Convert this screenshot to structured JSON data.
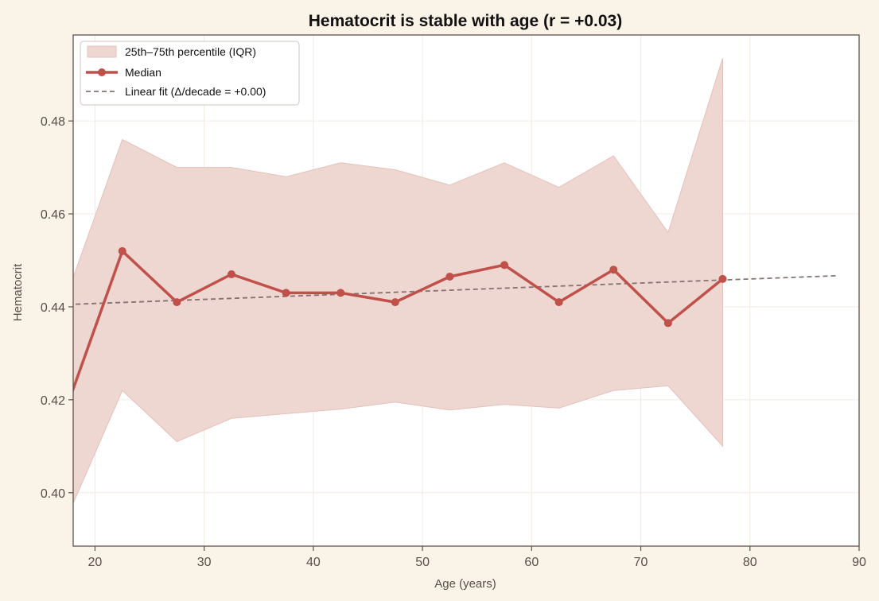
{
  "chart_data": {
    "type": "line",
    "title": "Hematocrit is stable with age (r = +0.03)",
    "xlabel": "Age (years)",
    "ylabel": "Hematocrit",
    "xlim": [
      18,
      90
    ],
    "ylim": [
      0.3885,
      0.4985
    ],
    "x_ticks": [
      20,
      30,
      40,
      50,
      60,
      70,
      80,
      90
    ],
    "y_ticks": [
      0.4,
      0.42,
      0.44,
      0.46,
      0.48
    ],
    "x_tick_labels": [
      "20",
      "30",
      "40",
      "50",
      "60",
      "70",
      "80",
      "90"
    ],
    "y_tick_labels": [
      "0.40",
      "0.42",
      "0.44",
      "0.46",
      "0.48"
    ],
    "grid": true,
    "legend_position": "top-left",
    "legend": {
      "band": "25th–75th percentile (IQR)",
      "median": "Median",
      "fit": "Linear fit (Δ/decade = +0.00)"
    },
    "x": [
      17.5,
      22.5,
      27.5,
      32.5,
      37.5,
      42.5,
      47.5,
      52.5,
      57.5,
      62.5,
      67.5,
      72.5,
      77.5
    ],
    "series": [
      {
        "name": "Median",
        "values": [
          0.419,
          0.452,
          0.441,
          0.447,
          0.443,
          0.443,
          0.441,
          0.4465,
          0.449,
          0.441,
          0.448,
          0.4365,
          0.446
        ]
      },
      {
        "name": "25th–75th percentile (IQR)",
        "lower": [
          0.395,
          0.422,
          0.411,
          0.416,
          0.417,
          0.418,
          0.4195,
          0.4178,
          0.419,
          0.4182,
          0.422,
          0.423,
          0.41
        ],
        "upper": [
          0.443,
          0.476,
          0.47,
          0.47,
          0.468,
          0.471,
          0.4695,
          0.4662,
          0.471,
          0.4657,
          0.4725,
          0.456,
          0.4935
        ]
      },
      {
        "name": "Linear fit (Δ/decade = +0.00)",
        "x": [
          17.5,
          88.0
        ],
        "values": [
          0.4405,
          0.4467
        ]
      }
    ],
    "colors": {
      "median": "#c0504a",
      "band_fill": "#eed6d1",
      "band_edge": "#e3c1bb",
      "fit": "#857373",
      "axis": "#5e524c",
      "grid": "#f1ebe0",
      "plot_bg": "#ffffff",
      "page_bg": "#faf3e8"
    }
  }
}
